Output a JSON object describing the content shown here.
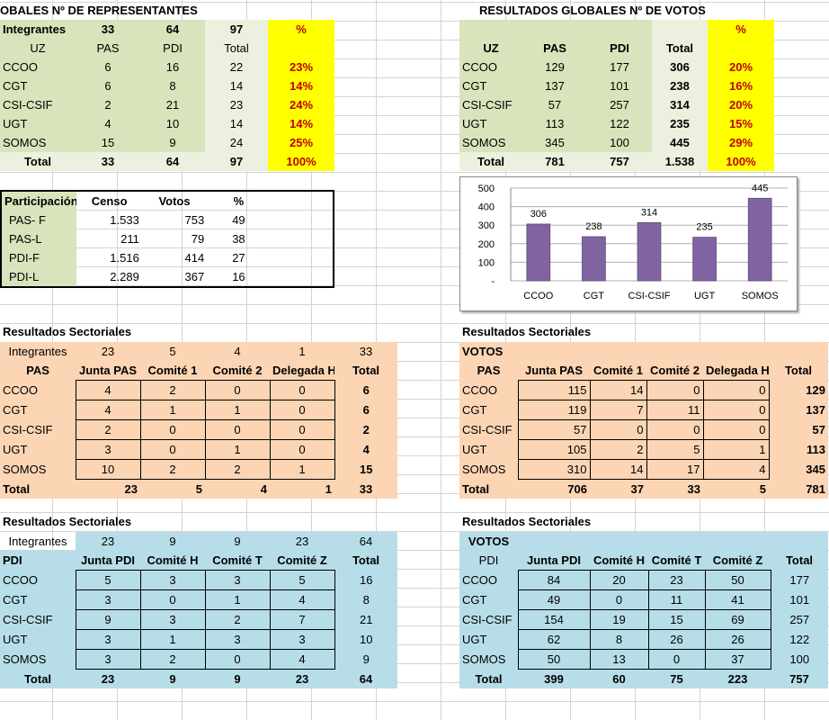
{
  "rep": {
    "title": "OBALES Nº DE REPRESENTANTES",
    "head1": [
      "Integrantes",
      "33",
      "64",
      "97",
      "%"
    ],
    "head2": [
      "UZ",
      "PAS",
      "PDI",
      "Total"
    ],
    "rows": [
      [
        "CCOO",
        "6",
        "16",
        "22",
        "23%"
      ],
      [
        "CGT",
        "6",
        "8",
        "14",
        "14%"
      ],
      [
        "CSI-CSIF",
        "2",
        "21",
        "23",
        "24%"
      ],
      [
        "UGT",
        "4",
        "10",
        "14",
        "14%"
      ],
      [
        "SOMOS",
        "15",
        "9",
        "24",
        "25%"
      ]
    ],
    "total": [
      "Total",
      "33",
      "64",
      "97",
      "100%"
    ]
  },
  "votes": {
    "title": "RESULTADOS GLOBALES Nº DE VOTOS",
    "head1": [
      "UZ",
      "PAS",
      "PDI",
      "Total",
      "%"
    ],
    "rows": [
      [
        "CCOO",
        "129",
        "177",
        "306",
        "20%"
      ],
      [
        "CGT",
        "137",
        "101",
        "238",
        "16%"
      ],
      [
        "CSI-CSIF",
        "57",
        "257",
        "314",
        "20%"
      ],
      [
        "UGT",
        "113",
        "122",
        "235",
        "15%"
      ],
      [
        "SOMOS",
        "345",
        "100",
        "445",
        "29%"
      ]
    ],
    "total": [
      "Total",
      "781",
      "757",
      "1.538",
      "100%"
    ]
  },
  "participation": {
    "head": [
      "Participación",
      "Censo",
      "Votos",
      "%"
    ],
    "rows": [
      [
        "PAS- F",
        "1.533",
        "753",
        "49"
      ],
      [
        "PAS-L",
        "211",
        "79",
        "38"
      ],
      [
        "PDI-F",
        "1.516",
        "414",
        "27"
      ],
      [
        "PDI-L",
        "2.289",
        "367",
        "16"
      ]
    ]
  },
  "chart_data": {
    "type": "bar",
    "categories": [
      "CCOO",
      "CGT",
      "CSI-CSIF",
      "UGT",
      "SOMOS"
    ],
    "values": [
      306,
      238,
      314,
      235,
      445
    ],
    "yticks": [
      "500",
      "400",
      "300",
      "200",
      "100",
      "-"
    ],
    "ylim": [
      0,
      500
    ],
    "bar_color": "#8064a2",
    "grid": true
  },
  "pas_rep": {
    "title": "Resultados Sectoriales",
    "integrantes": [
      "Integrantes",
      "23",
      "5",
      "4",
      "1",
      "33"
    ],
    "head": [
      "PAS",
      "Junta PAS",
      "Comité 1",
      "Comité 2",
      "Delegada Hca",
      "Total"
    ],
    "rows": [
      [
        "CCOO",
        "4",
        "2",
        "0",
        "0",
        "6"
      ],
      [
        "CGT",
        "4",
        "1",
        "1",
        "0",
        "6"
      ],
      [
        "CSI-CSIF",
        "2",
        "0",
        "0",
        "0",
        "2"
      ],
      [
        "UGT",
        "3",
        "0",
        "1",
        "0",
        "4"
      ],
      [
        "SOMOS",
        "10",
        "2",
        "2",
        "1",
        "15"
      ]
    ],
    "total": [
      "Total",
      "23",
      "5",
      "4",
      "1",
      "33"
    ]
  },
  "pas_votes": {
    "title": "Resultados Sectoriales",
    "label": "VOTOS",
    "head": [
      "PAS",
      "Junta PAS",
      "Comité 1",
      "Comité 2",
      "Delegada Hca",
      "Total"
    ],
    "rows": [
      [
        "CCOO",
        "115",
        "14",
        "0",
        "0",
        "129"
      ],
      [
        "CGT",
        "119",
        "7",
        "11",
        "0",
        "137"
      ],
      [
        "CSI-CSIF",
        "57",
        "0",
        "0",
        "0",
        "57"
      ],
      [
        "UGT",
        "105",
        "2",
        "5",
        "1",
        "113"
      ],
      [
        "SOMOS",
        "310",
        "14",
        "17",
        "4",
        "345"
      ]
    ],
    "total": [
      "Total",
      "706",
      "37",
      "33",
      "5",
      "781"
    ]
  },
  "pdi_rep": {
    "title": "Resultados Sectoriales",
    "integrantes": [
      "Integrantes",
      "23",
      "9",
      "9",
      "23",
      "64"
    ],
    "head": [
      "PDI",
      "Junta PDI",
      "Comité H",
      "Comité T",
      "Comité Z",
      "Total"
    ],
    "rows": [
      [
        "CCOO",
        "5",
        "3",
        "3",
        "5",
        "16"
      ],
      [
        "CGT",
        "3",
        "0",
        "1",
        "4",
        "8"
      ],
      [
        "CSI-CSIF",
        "9",
        "3",
        "2",
        "7",
        "21"
      ],
      [
        "UGT",
        "3",
        "1",
        "3",
        "3",
        "10"
      ],
      [
        "SOMOS",
        "3",
        "2",
        "0",
        "4",
        "9"
      ]
    ],
    "total": [
      "Total",
      "23",
      "9",
      "9",
      "23",
      "64"
    ]
  },
  "pdi_votes": {
    "title": "Resultados Sectoriales",
    "label": "VOTOS",
    "head": [
      "PDI",
      "Junta PDI",
      "Comité H",
      "Comité T",
      "Comité Z",
      "Total"
    ],
    "rows": [
      [
        "CCOO",
        "84",
        "20",
        "23",
        "50",
        "177"
      ],
      [
        "CGT",
        "49",
        "0",
        "11",
        "41",
        "101"
      ],
      [
        "CSI-CSIF",
        "154",
        "19",
        "15",
        "69",
        "257"
      ],
      [
        "UGT",
        "62",
        "8",
        "26",
        "26",
        "122"
      ],
      [
        "SOMOS",
        "50",
        "13",
        "0",
        "37",
        "100"
      ]
    ],
    "total": [
      "Total",
      "399",
      "60",
      "75",
      "223",
      "757"
    ]
  }
}
